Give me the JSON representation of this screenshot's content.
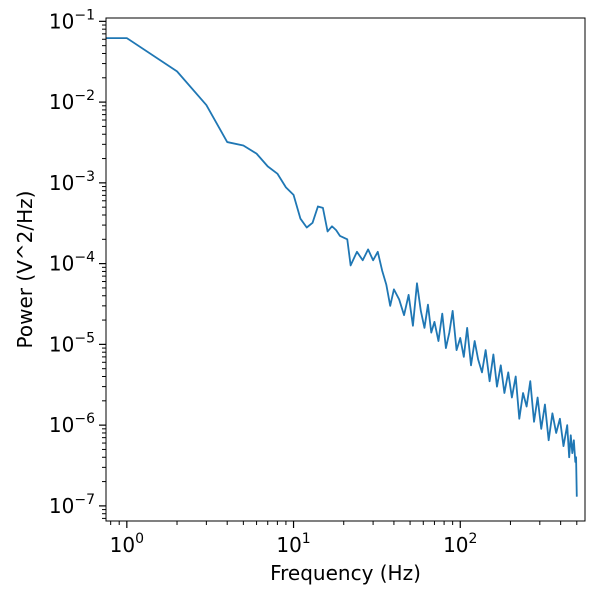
{
  "chart_data": {
    "type": "line",
    "title": "",
    "xlabel": "Frequency (Hz)",
    "ylabel": "Power (V^2/Hz)",
    "xscale": "log",
    "yscale": "log",
    "xlim": [
      0.75,
      560
    ],
    "ylim": [
      6.5e-08,
      0.11
    ],
    "grid": false,
    "legend": "none",
    "x_ticks": [
      {
        "value": 1,
        "label": "10",
        "exp": "0"
      },
      {
        "value": 10,
        "label": "10",
        "exp": "1"
      },
      {
        "value": 100,
        "label": "10",
        "exp": "2"
      }
    ],
    "y_ticks": [
      {
        "value": 1e-07,
        "label": "10",
        "exp": "−7"
      },
      {
        "value": 1e-06,
        "label": "10",
        "exp": "−6"
      },
      {
        "value": 1e-05,
        "label": "10",
        "exp": "−5"
      },
      {
        "value": 0.0001,
        "label": "10",
        "exp": "−4"
      },
      {
        "value": 0.001,
        "label": "10",
        "exp": "−3"
      },
      {
        "value": 0.01,
        "label": "10",
        "exp": "−2"
      },
      {
        "value": 0.1,
        "label": "10",
        "exp": "−1"
      }
    ],
    "series": [
      {
        "color": "#1f77b4",
        "points": [
          [
            0.75,
            0.062
          ],
          [
            1,
            0.062
          ],
          [
            2,
            0.024
          ],
          [
            3,
            0.0092
          ],
          [
            4,
            0.0032
          ],
          [
            5,
            0.0029
          ],
          [
            6,
            0.0023
          ],
          [
            7,
            0.0016
          ],
          [
            8,
            0.0013
          ],
          [
            9,
            0.00088
          ],
          [
            10,
            0.00071
          ],
          [
            11,
            0.00036
          ],
          [
            12,
            0.00028
          ],
          [
            13,
            0.00032
          ],
          [
            14,
            0.00051
          ],
          [
            15,
            0.00049
          ],
          [
            16,
            0.00025
          ],
          [
            17,
            0.00029
          ],
          [
            18,
            0.00026
          ],
          [
            19,
            0.00022
          ],
          [
            21,
            0.0002
          ],
          [
            22,
            9.5e-05
          ],
          [
            24,
            0.00014
          ],
          [
            26,
            0.00011
          ],
          [
            28,
            0.00015
          ],
          [
            30,
            0.00011
          ],
          [
            32,
            0.00014
          ],
          [
            34,
            8.2e-05
          ],
          [
            36,
            5.5e-05
          ],
          [
            38,
            3e-05
          ],
          [
            40,
            4.8e-05
          ],
          [
            43,
            3.6e-05
          ],
          [
            46,
            2.3e-05
          ],
          [
            49,
            4.1e-05
          ],
          [
            52,
            1.7e-05
          ],
          [
            55,
            5.7e-05
          ],
          [
            58,
            2.6e-05
          ],
          [
            61,
            1.6e-05
          ],
          [
            64,
            3.1e-05
          ],
          [
            67,
            1.4e-05
          ],
          [
            70,
            1.9e-05
          ],
          [
            74,
            1.1e-05
          ],
          [
            78,
            2.4e-05
          ],
          [
            82,
            9e-06
          ],
          [
            86,
            1.4e-05
          ],
          [
            90,
            2.6e-05
          ],
          [
            95,
            8.5e-06
          ],
          [
            100,
            1.2e-05
          ],
          [
            105,
            7e-06
          ],
          [
            110,
            1.6e-05
          ],
          [
            116,
            5.5e-06
          ],
          [
            122,
            1.1e-05
          ],
          [
            128,
            6.5e-06
          ],
          [
            135,
            4.5e-06
          ],
          [
            142,
            8.5e-06
          ],
          [
            150,
            3.5e-06
          ],
          [
            158,
            7.5e-06
          ],
          [
            166,
            3e-06
          ],
          [
            175,
            5.5e-06
          ],
          [
            184,
            2.5e-06
          ],
          [
            194,
            4.5e-06
          ],
          [
            204,
            2.2e-06
          ],
          [
            215,
            4e-06
          ],
          [
            226,
            1.2e-06
          ],
          [
            238,
            2.5e-06
          ],
          [
            250,
            1.7e-06
          ],
          [
            263,
            3.5e-06
          ],
          [
            277,
            1.1e-06
          ],
          [
            291,
            2.2e-06
          ],
          [
            306,
            9e-07
          ],
          [
            322,
            1.8e-06
          ],
          [
            339,
            6.5e-07
          ],
          [
            357,
            1.4e-06
          ],
          [
            376,
            8e-07
          ],
          [
            396,
            1.2e-06
          ],
          [
            416,
            5.5e-07
          ],
          [
            438,
            1e-06
          ],
          [
            450,
            4e-07
          ],
          [
            460,
            7.5e-07
          ],
          [
            470,
            4.5e-07
          ],
          [
            480,
            6.5e-07
          ],
          [
            490,
            3.5e-07
          ],
          [
            495,
            4e-07
          ],
          [
            500,
            1.3e-07
          ]
        ]
      }
    ]
  }
}
